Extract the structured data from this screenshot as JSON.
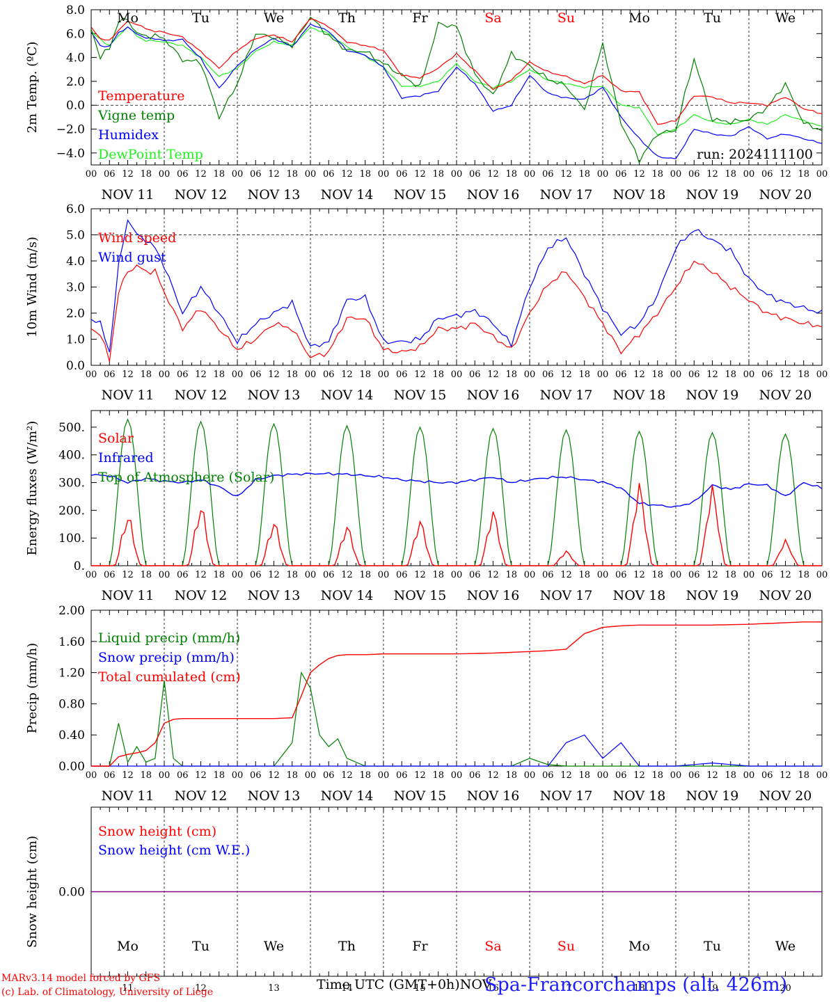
{
  "footer": {
    "credit_line1": "MARv3.14 model forced by GFS",
    "credit_line2": "(c) Lab. of Climatology, University of Liege",
    "x_axis_label": "Time UTC (GMT+0h)",
    "x_axis_month": "NOV",
    "station": "Spa-Francorchamps (alt. 426m)"
  },
  "days": {
    "weekday_labels": [
      "Mo",
      "Tu",
      "We",
      "Th",
      "Fr",
      "Sa",
      "Su",
      "Mo",
      "Tu",
      "We"
    ],
    "weekend_flags": [
      false,
      false,
      false,
      false,
      false,
      true,
      true,
      false,
      false,
      false
    ],
    "date_labels": [
      "NOV 11",
      "NOV 12",
      "NOV 13",
      "NOV 14",
      "NOV 15",
      "NOV 16",
      "NOV 17",
      "NOV 18",
      "NOV 19",
      "NOV 20"
    ],
    "day_numbers": [
      "11",
      "12",
      "13",
      "14",
      "15",
      "16",
      "17",
      "18",
      "19",
      "20"
    ],
    "hour_ticks": [
      "00",
      "06",
      "12",
      "18"
    ],
    "final_hour": "00"
  },
  "colors": {
    "red": "#ff0000",
    "darkgreen": "#008000",
    "blue": "#0000ff",
    "lightgreen": "#22ee22",
    "purple": "#800080"
  },
  "chart_data": [
    {
      "id": "temp",
      "type": "line",
      "ylabel": "2m Temp. (ºC)",
      "ylim": [
        -5.0,
        8.0
      ],
      "yticks": [
        "8.0",
        "6.0",
        "4.0",
        "2.0",
        "0.0",
        "−2.0",
        "−4.0"
      ],
      "ytick_values": [
        8,
        6,
        4,
        2,
        0,
        -2,
        -4
      ],
      "ref_line": 0,
      "annotation": "run: 2024111100",
      "x": [
        0,
        3,
        6,
        9,
        12,
        15,
        18,
        21,
        24,
        30,
        36,
        42,
        48,
        54,
        60,
        66,
        72,
        78,
        84,
        90,
        96,
        102,
        108,
        114,
        120,
        126,
        132,
        138,
        144,
        150,
        156,
        162,
        168,
        174,
        180,
        186,
        192,
        198,
        204,
        210,
        216,
        222,
        228,
        234,
        240
      ],
      "series": [
        {
          "name": "Temperature",
          "color": "red",
          "values": [
            6.5,
            5.6,
            5.4,
            6.3,
            7.0,
            6.8,
            6.4,
            6.2,
            6.1,
            5.7,
            4.5,
            3.1,
            4.6,
            5.6,
            5.9,
            5.3,
            7.3,
            6.6,
            5.3,
            5.0,
            4.6,
            2.5,
            2.3,
            3.1,
            4.3,
            2.9,
            1.3,
            2.1,
            3.6,
            2.8,
            2.4,
            1.8,
            2.5,
            1.2,
            1.1,
            -1.6,
            -1.3,
            0.8,
            0.7,
            0.2,
            0.2,
            0.0,
            0.7,
            -0.3,
            -0.7
          ]
        },
        {
          "name": "Vigne temp",
          "color": "darkgreen",
          "values": [
            6.4,
            4.0,
            4.8,
            7.0,
            7.2,
            6.0,
            5.8,
            5.8,
            5.6,
            3.8,
            3.6,
            -1.0,
            1.8,
            6.0,
            5.7,
            5.0,
            7.4,
            5.8,
            4.6,
            4.5,
            3.5,
            2.5,
            1.5,
            6.8,
            6.6,
            2.6,
            0.8,
            4.3,
            3.3,
            2.2,
            1.6,
            -0.4,
            5.2,
            -1.5,
            -4.6,
            -2.4,
            -2.1,
            3.9,
            -1.2,
            -1.4,
            -1.2,
            -0.2,
            1.8,
            -1.5,
            -2.1
          ]
        },
        {
          "name": "Humidex",
          "color": "blue",
          "values": [
            6.1,
            5.0,
            4.9,
            6.1,
            6.5,
            6.0,
            5.6,
            5.6,
            5.4,
            5.5,
            3.9,
            1.4,
            3.3,
            4.7,
            5.6,
            4.9,
            6.8,
            6.2,
            4.6,
            4.2,
            3.2,
            0.6,
            0.8,
            1.2,
            3.2,
            1.8,
            -0.5,
            0.0,
            2.5,
            1.0,
            0.6,
            0.5,
            1.5,
            -1.0,
            -2.8,
            -4.3,
            -4.5,
            -2.0,
            -2.4,
            -2.6,
            -1.8,
            -2.8,
            -2.4,
            -2.8,
            -3.2
          ]
        },
        {
          "name": "DewPoint Temp",
          "color": "lightgreen",
          "values": [
            6.2,
            5.5,
            5.0,
            5.8,
            6.6,
            5.8,
            5.4,
            5.4,
            5.3,
            5.0,
            4.0,
            2.4,
            3.1,
            4.5,
            5.3,
            5.0,
            6.5,
            6.0,
            4.9,
            4.1,
            3.2,
            1.6,
            1.6,
            2.0,
            3.5,
            2.0,
            1.5,
            2.0,
            3.0,
            2.1,
            1.8,
            1.5,
            1.6,
            0.0,
            -0.2,
            -2.5,
            -2.0,
            -0.8,
            -1.4,
            -1.6,
            -1.2,
            -1.6,
            -0.8,
            -1.3,
            -1.8
          ]
        }
      ]
    },
    {
      "id": "wind",
      "type": "line",
      "ylabel": "10m Wind (m/s)",
      "ylim": [
        0,
        6
      ],
      "yticks": [
        "6.0",
        "5.0",
        "4.0",
        "3.0",
        "2.0",
        "1.0",
        "0.0"
      ],
      "ytick_values": [
        6,
        5,
        4,
        3,
        2,
        1,
        0
      ],
      "ref_line": 5,
      "x": [
        0,
        3,
        6,
        9,
        12,
        15,
        18,
        21,
        24,
        30,
        36,
        42,
        48,
        54,
        60,
        66,
        72,
        78,
        84,
        90,
        96,
        102,
        108,
        114,
        120,
        126,
        132,
        138,
        144,
        150,
        156,
        162,
        168,
        174,
        180,
        186,
        192,
        198,
        204,
        210,
        216,
        222,
        228,
        234,
        240
      ],
      "series": [
        {
          "name": "Wind speed",
          "color": "red",
          "values": [
            1.4,
            1.2,
            0.2,
            2.8,
            3.6,
            3.8,
            3.6,
            3.6,
            2.8,
            1.4,
            2.2,
            1.4,
            0.6,
            1.0,
            1.6,
            1.4,
            0.3,
            0.5,
            1.8,
            1.8,
            0.6,
            0.5,
            0.7,
            1.4,
            1.4,
            1.6,
            1.1,
            0.6,
            2.0,
            3.1,
            3.6,
            2.6,
            1.6,
            0.5,
            1.2,
            2.0,
            3.0,
            4.0,
            3.6,
            3.0,
            2.5,
            2.0,
            1.8,
            1.6,
            1.5
          ]
        },
        {
          "name": "Wind gust",
          "color": "blue",
          "values": [
            1.8,
            1.6,
            0.5,
            3.8,
            5.6,
            5.0,
            4.8,
            4.5,
            3.8,
            2.0,
            3.0,
            2.0,
            0.9,
            1.6,
            2.0,
            2.4,
            0.7,
            0.9,
            2.5,
            2.6,
            0.9,
            0.9,
            1.0,
            1.8,
            1.9,
            2.1,
            1.6,
            0.8,
            3.0,
            4.5,
            4.9,
            3.5,
            2.2,
            1.2,
            1.6,
            2.7,
            4.5,
            5.2,
            4.8,
            4.4,
            3.3,
            2.7,
            2.4,
            2.2,
            2.0
          ]
        }
      ]
    },
    {
      "id": "energy",
      "type": "line",
      "ylabel": "Energy fluxes (W/m²)",
      "ylim": [
        0,
        560
      ],
      "yticks": [
        "500.",
        "400.",
        "300.",
        "200.",
        "100.",
        "0."
      ],
      "ytick_values": [
        500,
        400,
        300,
        200,
        100,
        0
      ],
      "x_infrared": [
        0,
        6,
        12,
        18,
        24,
        30,
        36,
        42,
        48,
        54,
        60,
        66,
        72,
        78,
        84,
        90,
        96,
        102,
        108,
        114,
        120,
        126,
        132,
        138,
        144,
        150,
        156,
        162,
        168,
        174,
        180,
        186,
        192,
        198,
        204,
        210,
        216,
        222,
        228,
        234,
        240
      ],
      "infrared_values": [
        328,
        325,
        300,
        315,
        305,
        300,
        310,
        285,
        248,
        310,
        325,
        330,
        332,
        332,
        330,
        325,
        320,
        310,
        305,
        300,
        300,
        310,
        320,
        300,
        310,
        318,
        320,
        310,
        302,
        280,
        225,
        218,
        212,
        230,
        290,
        275,
        295,
        290,
        250,
        300,
        280
      ],
      "series": [
        {
          "name": "Solar",
          "color": "red",
          "peaks": [
            190,
            225,
            165,
            150,
            170,
            205,
            55,
            305,
            295,
            95
          ]
        },
        {
          "name": "Infrared",
          "color": "blue"
        },
        {
          "name": "Top of Atmosphere (Solar)",
          "color": "darkgreen",
          "peaks": [
            528,
            520,
            512,
            505,
            500,
            495,
            490,
            485,
            480,
            475
          ]
        }
      ]
    },
    {
      "id": "precip",
      "type": "line",
      "ylabel": "Precip (mm/h)",
      "ylim": [
        0,
        2.0
      ],
      "yticks": [
        "2.00",
        "1.60",
        "1.20",
        "0.80",
        "0.40",
        "0.00"
      ],
      "ytick_values": [
        2.0,
        1.6,
        1.2,
        0.8,
        0.4,
        0.0
      ],
      "x": [
        0,
        6,
        9,
        12,
        15,
        18,
        21,
        24,
        27,
        30,
        36,
        48,
        60,
        66,
        69,
        72,
        75,
        78,
        81,
        84,
        90,
        96,
        108,
        120,
        132,
        138,
        144,
        150,
        156,
        162,
        168,
        174,
        180,
        192,
        204,
        216,
        228,
        234,
        240
      ],
      "series": [
        {
          "name": "Liquid precip (mm/h)",
          "color": "darkgreen",
          "values": [
            0,
            0,
            0.55,
            0.05,
            0.25,
            0.05,
            0.1,
            1.1,
            0.1,
            0,
            0,
            0,
            0,
            0.3,
            1.2,
            1.0,
            0.4,
            0.25,
            0.35,
            0.1,
            0,
            0,
            0,
            0,
            0,
            0,
            0.1,
            0.02,
            0,
            0,
            0,
            0,
            0,
            0,
            0,
            0,
            0,
            0,
            0
          ]
        },
        {
          "name": "Snow precip (mm/h)",
          "color": "blue",
          "values": [
            0,
            0,
            0,
            0,
            0,
            0,
            0,
            0,
            0,
            0,
            0,
            0,
            0,
            0,
            0,
            0,
            0,
            0,
            0,
            0,
            0,
            0,
            0,
            0,
            0,
            0,
            0,
            0,
            0.3,
            0.4,
            0.1,
            0.3,
            0,
            0,
            0.04,
            0,
            0,
            0,
            0
          ]
        },
        {
          "name": "Total cumulated (cm)",
          "color": "red",
          "values": [
            0,
            0,
            0.12,
            0.15,
            0.17,
            0.2,
            0.3,
            0.55,
            0.6,
            0.61,
            0.61,
            0.61,
            0.61,
            0.62,
            0.9,
            1.2,
            1.3,
            1.38,
            1.42,
            1.43,
            1.43,
            1.44,
            1.44,
            1.44,
            1.45,
            1.46,
            1.47,
            1.48,
            1.5,
            1.7,
            1.78,
            1.8,
            1.81,
            1.81,
            1.81,
            1.82,
            1.84,
            1.85,
            1.85
          ]
        }
      ]
    },
    {
      "id": "snow",
      "type": "line",
      "ylabel": "Snow height (cm)",
      "ylim": [
        -1,
        1
      ],
      "yticks": [
        "0.00"
      ],
      "ytick_values": [
        0
      ],
      "x": [
        0,
        240
      ],
      "series": [
        {
          "name": "Snow height (cm)",
          "color": "red",
          "values": [
            0,
            0
          ]
        },
        {
          "name": "Snow height (cm W.E.)",
          "color": "blue",
          "values": [
            0,
            0
          ]
        }
      ]
    }
  ]
}
